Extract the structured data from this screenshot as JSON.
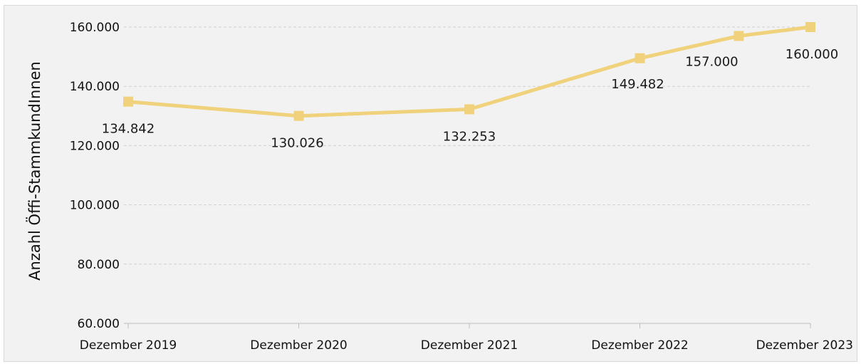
{
  "chart_data": {
    "type": "line",
    "title": "",
    "xlabel": "",
    "ylabel": "Anzahl Öffi-StammkundInnen",
    "categories": [
      "Dezember 2019",
      "Dezember 2020",
      "Dezember 2021",
      "Dezember 2022",
      "Dezember 2023"
    ],
    "y_ticks": [
      "60.000",
      "80.000",
      "100.000",
      "120.000",
      "140.000",
      "160.000"
    ],
    "ylim": [
      60000,
      160000
    ],
    "grid": true,
    "legend": "none",
    "series": [
      {
        "x": [
          2019.92,
          2020.92,
          2021.92,
          2022.92,
          2023.5,
          2023.92
        ],
        "values": [
          134842,
          130026,
          132253,
          149482,
          157000,
          160000
        ],
        "labels": [
          "134.842",
          "130.026",
          "132.253",
          "149.482",
          "157.000",
          "160.000"
        ]
      }
    ]
  },
  "colors": {
    "line": "#f0d27c",
    "background": "#f2f2f2",
    "border": "#d9d9d9",
    "grid": "#d0d0d0",
    "axis": "#bfbfbf"
  }
}
